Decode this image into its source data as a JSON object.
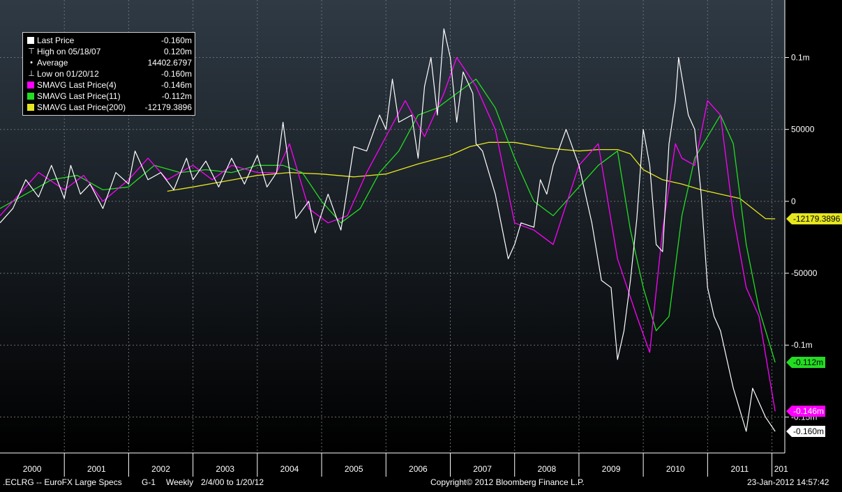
{
  "chart_data": {
    "type": "line",
    "x_tick_labels": [
      "2000",
      "2001",
      "2002",
      "2003",
      "2004",
      "2005",
      "2006",
      "2007",
      "2008",
      "2009",
      "2010",
      "2011",
      "201"
    ],
    "y_tick_labels": [
      {
        "value": 100000,
        "label": "0.1m"
      },
      {
        "value": 50000,
        "label": "50000"
      },
      {
        "value": 0,
        "label": "0"
      },
      {
        "value": -50000,
        "label": "-50000"
      },
      {
        "value": -100000,
        "label": "-0.1m"
      },
      {
        "value": -150000,
        "label": "-0.15m"
      }
    ],
    "ylim": [
      -175000,
      140000
    ],
    "xlim": [
      2000.0,
      2012.2
    ],
    "grid": true,
    "legend_position": "top-left",
    "series": [
      {
        "name": "Last Price",
        "color": "#ffffff",
        "x": [
          2000.0,
          2000.2,
          2000.4,
          2000.6,
          2000.8,
          2001.0,
          2001.1,
          2001.25,
          2001.4,
          2001.6,
          2001.8,
          2002.0,
          2002.1,
          2002.3,
          2002.5,
          2002.7,
          2002.9,
          2003.0,
          2003.2,
          2003.4,
          2003.6,
          2003.8,
          2004.0,
          2004.15,
          2004.3,
          2004.4,
          2004.6,
          2004.8,
          2004.9,
          2005.1,
          2005.3,
          2005.5,
          2005.7,
          2005.9,
          2006.0,
          2006.1,
          2006.2,
          2006.4,
          2006.5,
          2006.6,
          2006.7,
          2006.8,
          2006.9,
          2007.0,
          2007.1,
          2007.2,
          2007.35,
          2007.4,
          2007.5,
          2007.7,
          2007.9,
          2008.0,
          2008.1,
          2008.3,
          2008.4,
          2008.5,
          2008.6,
          2008.8,
          2009.0,
          2009.2,
          2009.35,
          2009.5,
          2009.6,
          2009.7,
          2009.8,
          2009.9,
          2010.0,
          2010.1,
          2010.2,
          2010.3,
          2010.4,
          2010.5,
          2010.55,
          2010.7,
          2010.8,
          2010.9,
          2011.0,
          2011.1,
          2011.2,
          2011.3,
          2011.4,
          2011.5,
          2011.6,
          2011.7,
          2011.8,
          2011.9,
          2012.05
        ],
        "values": [
          -15000,
          -5000,
          15000,
          3000,
          25000,
          2000,
          25000,
          5000,
          12000,
          -5000,
          20000,
          12000,
          35000,
          15000,
          20000,
          8000,
          30000,
          15000,
          28000,
          10000,
          30000,
          12000,
          32000,
          10000,
          20000,
          55000,
          -12000,
          0,
          -22000,
          5000,
          -20000,
          38000,
          35000,
          60000,
          50000,
          85000,
          55000,
          60000,
          30000,
          80000,
          100000,
          60000,
          120000,
          100000,
          55000,
          90000,
          75000,
          40000,
          35000,
          5000,
          -40000,
          -30000,
          -15000,
          -18000,
          15000,
          5000,
          25000,
          50000,
          25000,
          -15000,
          -55000,
          -60000,
          -110000,
          -90000,
          -55000,
          -12000,
          50000,
          25000,
          -30000,
          -35000,
          40000,
          70000,
          100000,
          60000,
          50000,
          5000,
          -60000,
          -80000,
          -90000,
          -110000,
          -130000,
          -145000,
          -160000,
          -130000,
          -140000,
          -150000,
          -160000
        ]
      },
      {
        "name": "SMAVG Last Price(4)",
        "color": "#ff00ff",
        "x": [
          2000.0,
          2000.3,
          2000.6,
          2001.0,
          2001.3,
          2001.6,
          2002.0,
          2002.3,
          2002.6,
          2003.0,
          2003.3,
          2003.6,
          2004.0,
          2004.3,
          2004.5,
          2004.8,
          2005.1,
          2005.4,
          2005.7,
          2006.0,
          2006.3,
          2006.6,
          2006.9,
          2007.1,
          2007.4,
          2007.7,
          2008.0,
          2008.3,
          2008.6,
          2009.0,
          2009.3,
          2009.6,
          2009.9,
          2010.1,
          2010.3,
          2010.5,
          2010.6,
          2010.8,
          2011.0,
          2011.2,
          2011.4,
          2011.6,
          2011.8,
          2012.05
        ],
        "values": [
          -10000,
          5000,
          20000,
          8000,
          18000,
          0,
          15000,
          30000,
          15000,
          25000,
          15000,
          25000,
          20000,
          20000,
          40000,
          -5000,
          -15000,
          -10000,
          20000,
          45000,
          70000,
          45000,
          75000,
          100000,
          80000,
          50000,
          -15000,
          -20000,
          -30000,
          25000,
          40000,
          -40000,
          -80000,
          -105000,
          -20000,
          40000,
          30000,
          25000,
          70000,
          60000,
          -10000,
          -60000,
          -80000,
          -146000
        ]
      },
      {
        "name": "SMAVG Last Price(11)",
        "color": "#22dd22",
        "x": [
          2000.0,
          2000.4,
          2000.8,
          2001.2,
          2001.6,
          2002.0,
          2002.4,
          2002.8,
          2003.2,
          2003.6,
          2004.0,
          2004.4,
          2004.7,
          2005.0,
          2005.3,
          2005.6,
          2005.9,
          2006.2,
          2006.5,
          2006.8,
          2007.1,
          2007.4,
          2007.7,
          2008.0,
          2008.3,
          2008.6,
          2009.0,
          2009.3,
          2009.6,
          2009.8,
          2010.0,
          2010.2,
          2010.4,
          2010.6,
          2010.8,
          2011.0,
          2011.2,
          2011.4,
          2011.6,
          2011.8,
          2012.05
        ],
        "values": [
          -5000,
          5000,
          15000,
          18000,
          8000,
          10000,
          25000,
          20000,
          22000,
          20000,
          25000,
          25000,
          20000,
          0,
          -15000,
          -5000,
          20000,
          35000,
          60000,
          65000,
          75000,
          85000,
          65000,
          30000,
          0,
          -10000,
          10000,
          25000,
          35000,
          -20000,
          -60000,
          -90000,
          -80000,
          -10000,
          30000,
          45000,
          60000,
          40000,
          -30000,
          -75000,
          -112000
        ]
      },
      {
        "name": "SMAVG Last Price(200)",
        "color": "#e6e620",
        "x": [
          2002.6,
          2003.0,
          2003.5,
          2004.0,
          2004.5,
          2005.0,
          2005.5,
          2006.0,
          2006.5,
          2007.0,
          2007.3,
          2007.6,
          2008.0,
          2008.5,
          2009.0,
          2009.3,
          2009.6,
          2009.8,
          2010.0,
          2010.3,
          2010.6,
          2010.9,
          2011.2,
          2011.5,
          2011.7,
          2011.9,
          2012.05
        ],
        "values": [
          7000,
          10000,
          14000,
          18000,
          20000,
          19000,
          17000,
          19000,
          26000,
          32000,
          38000,
          41000,
          41000,
          37000,
          35000,
          36000,
          36000,
          33000,
          22000,
          15000,
          12000,
          8000,
          5000,
          2000,
          -5000,
          -12000,
          -12179
        ]
      }
    ],
    "legend": [
      {
        "glyph": "square",
        "color": "#ffffff",
        "label": "Last Price",
        "value": "-0.160m"
      },
      {
        "glyph": "high",
        "color": "#ffffff",
        "label": "High on 05/18/07",
        "value": "0.120m"
      },
      {
        "glyph": "average",
        "color": "#ffffff",
        "label": "Average",
        "value": "14402.6797"
      },
      {
        "glyph": "low",
        "color": "#ffffff",
        "label": "Low on 01/20/12",
        "value": "-0.160m"
      },
      {
        "glyph": "square",
        "color": "#ff00ff",
        "label": "SMAVG Last Price(4)",
        "value": "-0.146m"
      },
      {
        "glyph": "square",
        "color": "#22dd22",
        "label": "SMAVG Last Price(11)",
        "value": "-0.112m"
      },
      {
        "glyph": "square",
        "color": "#e6e620",
        "label": "SMAVG Last Price(200)",
        "value": "-12179.3896"
      }
    ],
    "right_labels": [
      {
        "value": -12179.3896,
        "label": "-12179.3896",
        "bg": "#e6e620",
        "fg": "#000000"
      },
      {
        "value": -112000,
        "label": "-0.112m",
        "bg": "#22dd22",
        "fg": "#000000"
      },
      {
        "value": -146000,
        "label": "-0.146m",
        "bg": "#ff00ff",
        "fg": "#ffffff"
      },
      {
        "value": -160000,
        "label": "-0.160m",
        "bg": "#ffffff",
        "fg": "#000000"
      }
    ]
  },
  "footer": {
    "ticker": ".ECLRG -- EuroFX Large Specs",
    "chart_id": "G-1",
    "frequency": "Weekly",
    "range": "2/4/00 to 1/20/12",
    "copyright": "Copyright© 2012 Bloomberg Finance L.P.",
    "timestamp": "23-Jan-2012 14:57:42"
  },
  "colors": {
    "background_top": "#2f3a45",
    "background_bottom": "#000000",
    "grid": "#6a6f75"
  }
}
